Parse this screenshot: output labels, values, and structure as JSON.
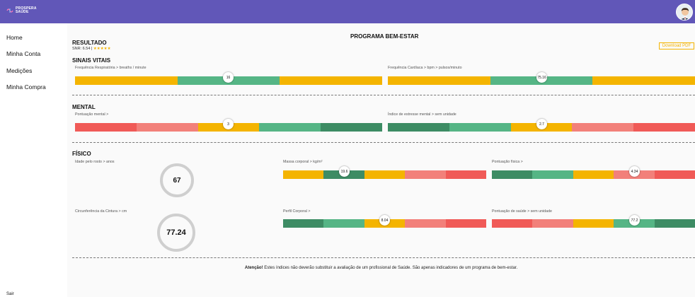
{
  "brand": {
    "line1": "PROSPERA",
    "line2": "SAÚDE"
  },
  "sidebar": {
    "items": [
      {
        "label": "Home"
      },
      {
        "label": "Minha Conta"
      },
      {
        "label": "Medições"
      },
      {
        "label": "Minha Compra"
      }
    ],
    "logout": "Sair"
  },
  "page": {
    "title": "PROGRAMA BEM-ESTAR"
  },
  "result": {
    "heading": "RESULTADO",
    "snr_label": "SNR: 6.54 |",
    "stars": "★★★★★",
    "download_label": "Download PDF"
  },
  "colors": {
    "yellow": "#f4b400",
    "green": "#55b585",
    "dark_green": "#3d8c64",
    "light_red": "#f2807a",
    "red": "#f05a57",
    "header": "#6157b8"
  },
  "sections": {
    "vitais": {
      "title": "SINAIS VITAIS"
    },
    "mental": {
      "title": "MENTAL"
    },
    "fisico": {
      "title": "FÍSICO"
    }
  },
  "metrics": {
    "resp": {
      "label": "Frequência Respiratória > breaths / minute",
      "value": "16",
      "segments": [
        "yellow",
        "green",
        "yellow"
      ],
      "position": 0.5
    },
    "cardiac": {
      "label": "Frequência Cardíaca > bpm > pulsos/minuto",
      "value": "75.16",
      "segments": [
        "yellow",
        "green",
        "yellow"
      ],
      "position": 0.5
    },
    "mental_score": {
      "label": "Pontuação mental >",
      "value": "3",
      "segments": [
        "red",
        "light_red",
        "yellow",
        "green",
        "dark_green"
      ],
      "position": 0.5
    },
    "stress": {
      "label": "Índice de estresse mental > sem unidade",
      "value": "2.7",
      "segments": [
        "dark_green",
        "green",
        "yellow",
        "light_red",
        "red"
      ],
      "position": 0.5
    },
    "face_age": {
      "label": "Idade pelo rosto > anos",
      "value": "67"
    },
    "body_mass": {
      "label": "Massa corporal > kg/m²",
      "value": "19.6",
      "segments": [
        "yellow",
        "dark_green",
        "yellow",
        "light_red",
        "red"
      ],
      "position": 0.3
    },
    "physical_score": {
      "label": "Pontuação física >",
      "value": "4.34",
      "segments": [
        "dark_green",
        "green",
        "yellow",
        "light_red",
        "red"
      ],
      "position": 0.7
    },
    "waist": {
      "label": "Circunferência da Cintura > cm",
      "value": "77.24"
    },
    "body_profile": {
      "label": "Perfil Corporal >",
      "value": "8.04",
      "segments": [
        "dark_green",
        "green",
        "yellow",
        "light_red",
        "red"
      ],
      "position": 0.5
    },
    "health_score": {
      "label": "Pontuação de saúde > sem unidade",
      "value": "77.2",
      "segments": [
        "red",
        "light_red",
        "yellow",
        "green",
        "dark_green"
      ],
      "position": 0.7
    }
  },
  "notice": {
    "strong": "Atenção!",
    "text": " Estes índices não deverão substituir a avaliação de um profissional de Saúde. São apenas indicadores de um programa de bem-estar."
  }
}
